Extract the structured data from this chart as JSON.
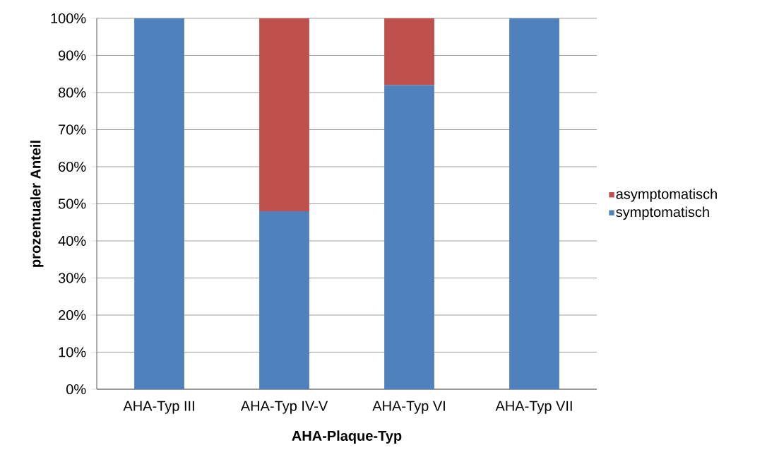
{
  "chart_data": {
    "type": "bar",
    "stacked": true,
    "xlabel": "AHA-Plaque-Typ",
    "ylabel": "prozentualer Anteil",
    "categories": [
      "AHA-Typ III",
      "AHA-Typ IV-V",
      "AHA-Typ VI",
      "AHA-Typ VII"
    ],
    "series": [
      {
        "name": "symptomatisch",
        "color": "#4f81bd",
        "values": [
          100,
          48,
          82,
          100
        ]
      },
      {
        "name": "asymptomatisch",
        "color": "#c0504d",
        "values": [
          0,
          52,
          18,
          0
        ]
      }
    ],
    "ylim": [
      0,
      100
    ],
    "yticks": [
      {
        "value": 0,
        "label": "0%"
      },
      {
        "value": 10,
        "label": "10%"
      },
      {
        "value": 20,
        "label": "20%"
      },
      {
        "value": 30,
        "label": "30%"
      },
      {
        "value": 40,
        "label": "40%"
      },
      {
        "value": 50,
        "label": "50%"
      },
      {
        "value": 60,
        "label": "60%"
      },
      {
        "value": 70,
        "label": "70%"
      },
      {
        "value": 80,
        "label": "80%"
      },
      {
        "value": 90,
        "label": "90%"
      },
      {
        "value": 100,
        "label": "100%"
      }
    ],
    "grid": "y",
    "legend": "right"
  }
}
